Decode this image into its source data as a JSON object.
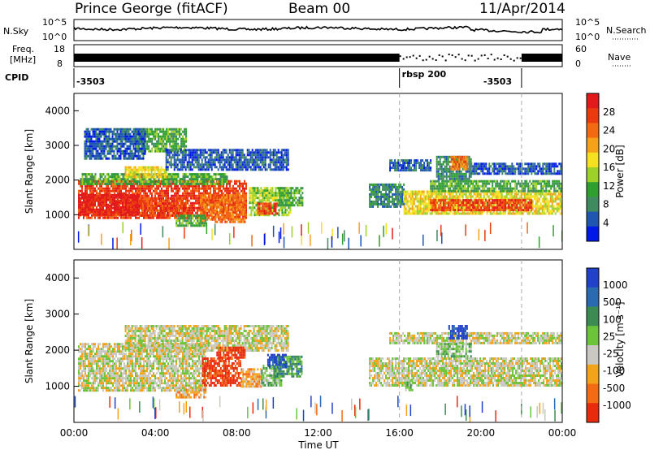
{
  "header": {
    "station": "Prince George (fitACF)",
    "beam": "Beam 00",
    "date": "11/Apr/2014"
  },
  "noise_panel": {
    "left_label": "N.Sky",
    "left_ticks": [
      "10^5",
      "10^0"
    ],
    "right_label": "N.Search",
    "right_ticks": [
      "10^5",
      "10^0"
    ]
  },
  "freq_panel": {
    "left_label_1": "Freq.",
    "left_label_2": "[MHz]",
    "left_ticks": [
      "18",
      "8"
    ],
    "right_label": "Nave",
    "right_ticks": [
      "60",
      "0"
    ]
  },
  "cpid": {
    "label": "CPID",
    "entries": [
      {
        "text": "-3503",
        "start_hour": 0.0
      },
      {
        "text": "rbsp 200",
        "start_hour": 16.0
      },
      {
        "text": "-3503",
        "start_hour": 22.0
      }
    ]
  },
  "x_axis": {
    "label": "Time UT",
    "ticks": [
      "00:00",
      "04:00",
      "08:00",
      "12:00",
      "16:00",
      "20:00",
      "00:00"
    ]
  },
  "y_axis": {
    "label": "Slant Range [km]",
    "ticks": [
      "1000",
      "2000",
      "3000",
      "4000"
    ]
  },
  "power_scale": {
    "label": "Power [dB]",
    "ticks": [
      "4",
      "8",
      "12",
      "16",
      "20",
      "24",
      "28"
    ],
    "colors": [
      "#0019e6",
      "#1f56b0",
      "#3f8a5f",
      "#2fa02f",
      "#9ed02a",
      "#f5e021",
      "#f5a21a",
      "#f26a12",
      "#ea3a0e",
      "#e31a1c"
    ]
  },
  "velocity_scale": {
    "label": "Velocity [m s⁻¹]",
    "ticks": [
      "1000",
      "500",
      "100",
      "25",
      "-25",
      "-100",
      "-500",
      "-1000"
    ],
    "colors": [
      "#2142c8",
      "#2a6ab0",
      "#3c8b53",
      "#6cc43a",
      "#c9c9c2",
      "#f2a31a",
      "#f36b15",
      "#e82b0c"
    ]
  },
  "chart_data": [
    {
      "type": "line",
      "title": "N.Sky",
      "x_range_hours": [
        0,
        24
      ],
      "y_scale": "log",
      "ylim": [
        "10^0",
        "10^5"
      ],
      "note": "noise level near 10^2-10^3 most of the day, lower around 20:00-23:00"
    },
    {
      "type": "bar",
      "title": "Freq. [MHz] / Nave",
      "x_range_hours": [
        0,
        24
      ],
      "ylim_freq": [
        8,
        18
      ],
      "ylim_nave": [
        0,
        60
      ],
      "segments": [
        {
          "start_hour": 0,
          "end_hour": 16,
          "style": "solid"
        },
        {
          "start_hour": 16,
          "end_hour": 22,
          "style": "dotted"
        },
        {
          "start_hour": 22,
          "end_hour": 24,
          "style": "solid"
        }
      ]
    },
    {
      "type": "heatmap",
      "title": "Power [dB]",
      "xlabel": "Time UT",
      "ylabel": "Slant Range [km]",
      "x_range_hours": [
        0,
        24
      ],
      "ylim": [
        0,
        4500
      ],
      "bands": [
        {
          "x0": 0.2,
          "x1": 8.5,
          "y0": 900,
          "y1": 2000,
          "level": 8
        },
        {
          "x0": 0.2,
          "x1": 3.2,
          "y0": 1000,
          "y1": 1600,
          "level": 9
        },
        {
          "x0": 3.2,
          "x1": 5.5,
          "y0": 1000,
          "y1": 1500,
          "level": 8
        },
        {
          "x0": 0.3,
          "x1": 7.5,
          "y0": 1900,
          "y1": 2200,
          "level": 3
        },
        {
          "x0": 2.5,
          "x1": 4.5,
          "y0": 2100,
          "y1": 2400,
          "level": 5
        },
        {
          "x0": 6.2,
          "x1": 8.4,
          "y0": 800,
          "y1": 1600,
          "level": 7
        },
        {
          "x0": 5.0,
          "x1": 6.5,
          "y0": 700,
          "y1": 1000,
          "level": 3
        },
        {
          "x0": 8.6,
          "x1": 10.6,
          "y0": 1000,
          "y1": 1800,
          "level": 4
        },
        {
          "x0": 9.0,
          "x1": 10.0,
          "y0": 1050,
          "y1": 1350,
          "level": 8
        },
        {
          "x0": 10.0,
          "x1": 11.2,
          "y0": 1300,
          "y1": 1800,
          "level": 3
        },
        {
          "x0": 3.0,
          "x1": 5.5,
          "y0": 2800,
          "y1": 3500,
          "level": 3
        },
        {
          "x0": 4.5,
          "x1": 10.5,
          "y0": 2300,
          "y1": 2900,
          "level": 1
        },
        {
          "x0": 14.5,
          "x1": 16.2,
          "y0": 1200,
          "y1": 1900,
          "level": 2
        },
        {
          "x0": 16.2,
          "x1": 24.0,
          "y0": 1000,
          "y1": 1700,
          "level": 5
        },
        {
          "x0": 17.5,
          "x1": 22.5,
          "y0": 1100,
          "y1": 1450,
          "level": 8
        },
        {
          "x0": 17.5,
          "x1": 24.0,
          "y0": 1700,
          "y1": 2000,
          "level": 3
        },
        {
          "x0": 15.5,
          "x1": 17.5,
          "y0": 2300,
          "y1": 2600,
          "level": 1
        },
        {
          "x0": 17.8,
          "x1": 19.5,
          "y0": 2000,
          "y1": 2700,
          "level": 2
        },
        {
          "x0": 18.5,
          "x1": 19.3,
          "y0": 2300,
          "y1": 2700,
          "level": 7
        },
        {
          "x0": 19.5,
          "x1": 24.0,
          "y0": 2200,
          "y1": 2500,
          "level": 1
        },
        {
          "x0": 0.5,
          "x1": 3.5,
          "y0": 2600,
          "y1": 3500,
          "level": 1
        }
      ]
    },
    {
      "type": "heatmap",
      "title": "Velocity [m s⁻¹]",
      "xlabel": "Time UT",
      "ylabel": "Slant Range [km]",
      "x_range_hours": [
        0,
        24
      ],
      "ylim": [
        0,
        4500
      ],
      "bands": [
        {
          "x0": 0.2,
          "x1": 6.5,
          "y0": 900,
          "y1": 2200,
          "level": 4
        },
        {
          "x0": 2.5,
          "x1": 10.5,
          "y0": 2000,
          "y1": 2700,
          "level": 4
        },
        {
          "x0": 6.3,
          "x1": 8.2,
          "y0": 1000,
          "y1": 1800,
          "level": 7
        },
        {
          "x0": 7.0,
          "x1": 8.4,
          "y0": 1800,
          "y1": 2100,
          "level": 7
        },
        {
          "x0": 5.0,
          "x1": 6.5,
          "y0": 700,
          "y1": 1000,
          "level": 5
        },
        {
          "x0": 8.2,
          "x1": 9.2,
          "y0": 1000,
          "y1": 1500,
          "level": 5
        },
        {
          "x0": 9.2,
          "x1": 10.2,
          "y0": 1050,
          "y1": 1600,
          "level": 3
        },
        {
          "x0": 9.8,
          "x1": 11.2,
          "y0": 1250,
          "y1": 1850,
          "level": 2
        },
        {
          "x0": 9.5,
          "x1": 10.4,
          "y0": 1500,
          "y1": 1900,
          "level": 0
        },
        {
          "x0": 14.5,
          "x1": 24.0,
          "y0": 1000,
          "y1": 1800,
          "level": 4
        },
        {
          "x0": 15.5,
          "x1": 24.0,
          "y0": 2200,
          "y1": 2500,
          "level": 4
        },
        {
          "x0": 18.4,
          "x1": 19.3,
          "y0": 2300,
          "y1": 2700,
          "level": 0
        },
        {
          "x0": 17.8,
          "x1": 19.5,
          "y0": 1800,
          "y1": 2200,
          "level": 3
        },
        {
          "x0": 16.2,
          "x1": 16.6,
          "y0": 900,
          "y1": 1200,
          "level": 3
        }
      ]
    }
  ]
}
